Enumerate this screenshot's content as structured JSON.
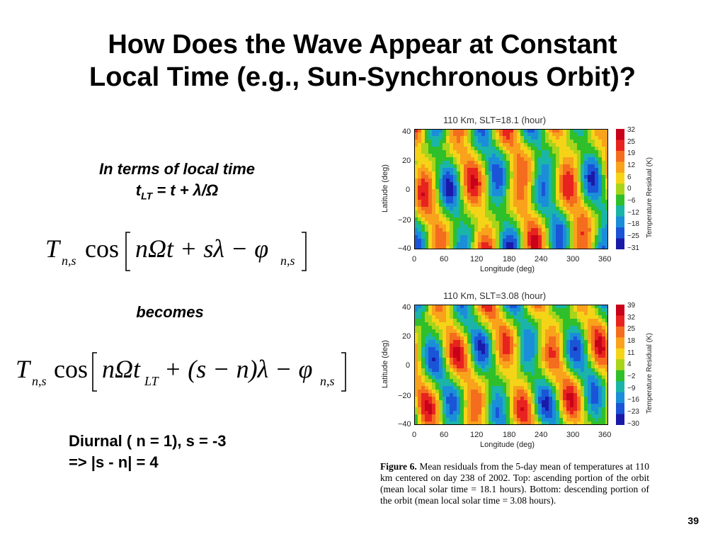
{
  "slide": {
    "title_line1": "How Does the Wave Appear at Constant",
    "title_line2": "Local Time (e.g., Sun-Synchronous Orbit)?",
    "local_time_heading": "In terms of local time",
    "local_time_formula_t": "t",
    "local_time_formula_sub": "LT",
    "local_time_formula_rest": " = t + λ/Ω",
    "becomes_label": "becomes",
    "diurnal_line1": "Diurnal ( n = 1), s = -3",
    "diurnal_line2": "=> |s - n| = 4",
    "page_number": "39"
  },
  "equation1": {
    "T": "T",
    "T_sub": "n,s",
    "cos": "cos",
    "body": "nΩt + sλ − φ",
    "phi_sub": "n,s"
  },
  "equation2": {
    "T": "T",
    "T_sub": "n,s",
    "cos": "cos",
    "part1": "nΩt",
    "t_sub": "LT",
    "part2": " + (s − n)λ − φ",
    "phi_sub": "n,s"
  },
  "figure": {
    "top_panel": {
      "title": "110 Km, SLT=18.1 (hour)",
      "ylabel": "Latitude (deg)",
      "xlabel": "Longitude (deg)",
      "cbar_title": "Temperature Residual (K)",
      "cbar_labels": [
        "32",
        "25",
        "19",
        "12",
        "6",
        "0",
        "−6",
        "−12",
        "−18",
        "−25",
        "−31"
      ]
    },
    "bottom_panel": {
      "title": "110 Km, SLT=3.08 (hour)",
      "ylabel": "Latitude (deg)",
      "xlabel": "Longitude (deg)",
      "cbar_title": "Temperature Residual (K)",
      "cbar_labels": [
        "39",
        "32",
        "25",
        "18",
        "11",
        "4",
        "−2",
        "−9",
        "−16",
        "−23",
        "−30"
      ]
    },
    "x_ticks": [
      "0",
      "60",
      "120",
      "180",
      "240",
      "300",
      "360"
    ],
    "y_ticks": [
      "40",
      "20",
      "0",
      "−20",
      "−40"
    ],
    "caption_label": "Figure 6.",
    "caption_text": " Mean residuals from the 5-day mean of temperatures at 110 km centered on day 238 of 2002. Top: ascending portion of the orbit (mean local solar time = 18.1 hours). Bottom: descending portion of the orbit (mean local solar time = 3.08 hours).",
    "colors": [
      "#c8001a",
      "#e8231f",
      "#f46d1e",
      "#f9a21c",
      "#f5d418",
      "#a8d41a",
      "#2fbf2a",
      "#1ab5a8",
      "#1a8ed8",
      "#1a55d8",
      "#1a1aa8"
    ]
  }
}
